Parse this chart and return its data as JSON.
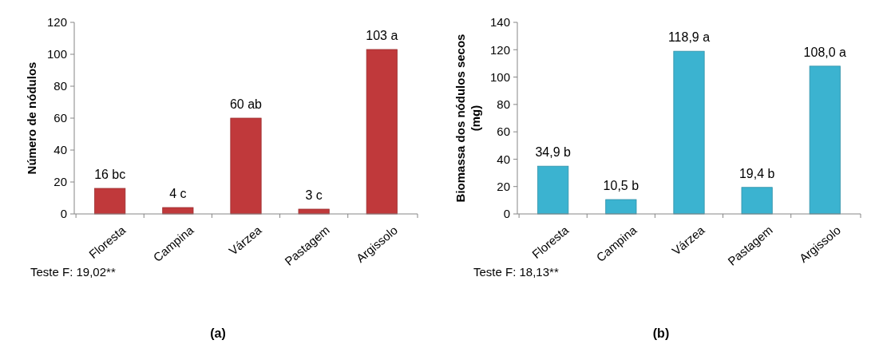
{
  "chart_data": [
    {
      "type": "bar",
      "ylabel": "Número de nódulos",
      "categories": [
        "Floresta",
        "Campina",
        "Várzea",
        "Pastagem",
        "Argissolo"
      ],
      "values": [
        16,
        4,
        60,
        3,
        103
      ],
      "value_labels": [
        "16 bc",
        "4 c",
        "60 ab",
        "3 c",
        "103 a"
      ],
      "color": "#c0393b",
      "ylim": [
        0,
        120
      ],
      "yticks": [
        0,
        20,
        40,
        60,
        80,
        100,
        120
      ],
      "grid": false,
      "annotations": [
        "Teste F: 19,02**",
        "(a)"
      ]
    },
    {
      "type": "bar",
      "ylabel": "Biomassa dos nódulos secos (mg)",
      "categories": [
        "Floresta",
        "Campina",
        "Várzea",
        "Pastagem",
        "Argissolo"
      ],
      "values": [
        34.9,
        10.5,
        118.9,
        19.4,
        108.0
      ],
      "value_labels": [
        "34,9 b",
        "10,5 b",
        "118,9 a",
        "19,4 b",
        "108,0 a"
      ],
      "color": "#3bb3d0",
      "ylim": [
        0,
        140
      ],
      "yticks": [
        0,
        20,
        40,
        60,
        80,
        100,
        120,
        140
      ],
      "grid": false,
      "annotations": [
        "Teste F: 18,13**",
        "(b)"
      ]
    }
  ]
}
